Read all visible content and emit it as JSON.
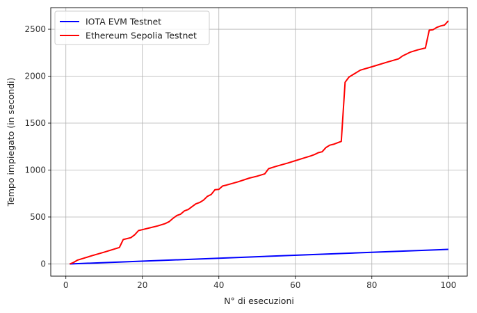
{
  "chart_data": {
    "type": "line",
    "title": "",
    "xlabel": "N° di esecuzioni",
    "ylabel": "Tempo impiegato (in secondi)",
    "xlim": [
      -3.95,
      104.95
    ],
    "ylim": [
      -130,
      2730
    ],
    "xticks": [
      0,
      20,
      40,
      60,
      80,
      100
    ],
    "yticks": [
      0,
      500,
      1000,
      1500,
      2000,
      2500
    ],
    "grid": true,
    "legend_position": "top-left",
    "series": [
      {
        "name": "IOTA EVM Testnet",
        "color": "#0000ff",
        "x": [
          1,
          100
        ],
        "y": [
          0,
          155
        ]
      },
      {
        "name": "Ethereum Sepolia Testnet",
        "color": "#ff0000",
        "x": [
          1,
          2,
          3,
          5,
          7,
          10,
          14,
          15,
          17,
          18,
          19,
          20,
          22,
          24,
          26,
          27,
          28,
          29,
          30,
          31,
          32,
          33,
          34,
          35,
          36,
          37,
          38,
          39,
          40,
          41,
          42,
          45,
          48,
          50,
          52,
          53,
          55,
          58,
          60,
          62,
          64,
          65,
          66,
          67,
          68,
          69,
          70,
          71,
          72,
          73,
          74,
          75,
          77,
          80,
          84,
          87,
          88,
          90,
          92,
          94,
          95,
          96,
          97,
          98,
          99,
          100
        ],
        "y": [
          0,
          15,
          40,
          65,
          90,
          125,
          175,
          260,
          280,
          310,
          355,
          365,
          385,
          405,
          430,
          450,
          485,
          515,
          530,
          565,
          580,
          610,
          640,
          655,
          680,
          720,
          740,
          790,
          795,
          830,
          840,
          875,
          915,
          935,
          960,
          1015,
          1040,
          1075,
          1100,
          1125,
          1150,
          1165,
          1185,
          1195,
          1240,
          1265,
          1275,
          1290,
          1305,
          1935,
          1990,
          2015,
          2065,
          2100,
          2150,
          2185,
          2215,
          2255,
          2280,
          2300,
          2490,
          2495,
          2520,
          2535,
          2545,
          2590
        ]
      }
    ]
  }
}
